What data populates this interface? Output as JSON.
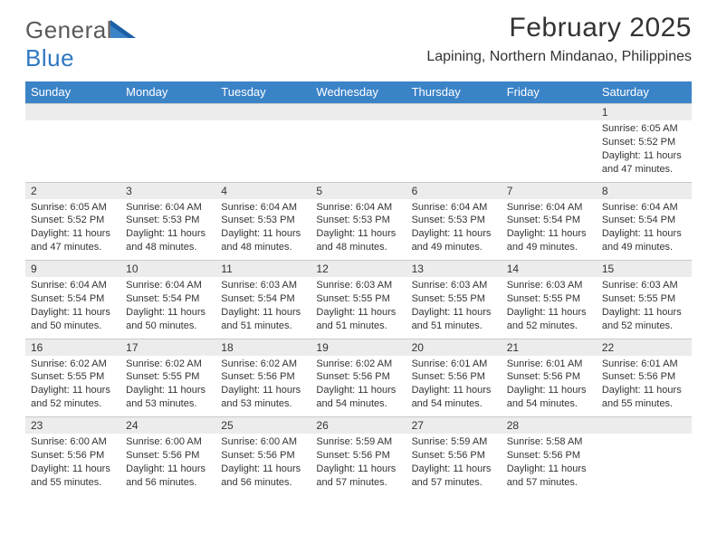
{
  "brand": {
    "name_part1": "General",
    "name_part2": "Blue",
    "text_color": "#5a5a5a",
    "accent_color": "#2f78c2"
  },
  "title": {
    "month_year": "February 2025",
    "location": "Lapining, Northern Mindanao, Philippines",
    "month_fontsize": 30,
    "location_fontsize": 16
  },
  "calendar": {
    "type": "table",
    "header_bg": "#3b83c7",
    "header_fg": "#ffffff",
    "daynum_bg": "#ececec",
    "cell_bg": "#ffffff",
    "border_color": "#c9c9c9",
    "font_size_body": 11,
    "columns": [
      "Sunday",
      "Monday",
      "Tuesday",
      "Wednesday",
      "Thursday",
      "Friday",
      "Saturday"
    ],
    "weeks": [
      [
        null,
        null,
        null,
        null,
        null,
        null,
        {
          "n": "1",
          "sr": "Sunrise: 6:05 AM",
          "ss": "Sunset: 5:52 PM",
          "dl": "Daylight: 11 hours and 47 minutes."
        }
      ],
      [
        {
          "n": "2",
          "sr": "Sunrise: 6:05 AM",
          "ss": "Sunset: 5:52 PM",
          "dl": "Daylight: 11 hours and 47 minutes."
        },
        {
          "n": "3",
          "sr": "Sunrise: 6:04 AM",
          "ss": "Sunset: 5:53 PM",
          "dl": "Daylight: 11 hours and 48 minutes."
        },
        {
          "n": "4",
          "sr": "Sunrise: 6:04 AM",
          "ss": "Sunset: 5:53 PM",
          "dl": "Daylight: 11 hours and 48 minutes."
        },
        {
          "n": "5",
          "sr": "Sunrise: 6:04 AM",
          "ss": "Sunset: 5:53 PM",
          "dl": "Daylight: 11 hours and 48 minutes."
        },
        {
          "n": "6",
          "sr": "Sunrise: 6:04 AM",
          "ss": "Sunset: 5:53 PM",
          "dl": "Daylight: 11 hours and 49 minutes."
        },
        {
          "n": "7",
          "sr": "Sunrise: 6:04 AM",
          "ss": "Sunset: 5:54 PM",
          "dl": "Daylight: 11 hours and 49 minutes."
        },
        {
          "n": "8",
          "sr": "Sunrise: 6:04 AM",
          "ss": "Sunset: 5:54 PM",
          "dl": "Daylight: 11 hours and 49 minutes."
        }
      ],
      [
        {
          "n": "9",
          "sr": "Sunrise: 6:04 AM",
          "ss": "Sunset: 5:54 PM",
          "dl": "Daylight: 11 hours and 50 minutes."
        },
        {
          "n": "10",
          "sr": "Sunrise: 6:04 AM",
          "ss": "Sunset: 5:54 PM",
          "dl": "Daylight: 11 hours and 50 minutes."
        },
        {
          "n": "11",
          "sr": "Sunrise: 6:03 AM",
          "ss": "Sunset: 5:54 PM",
          "dl": "Daylight: 11 hours and 51 minutes."
        },
        {
          "n": "12",
          "sr": "Sunrise: 6:03 AM",
          "ss": "Sunset: 5:55 PM",
          "dl": "Daylight: 11 hours and 51 minutes."
        },
        {
          "n": "13",
          "sr": "Sunrise: 6:03 AM",
          "ss": "Sunset: 5:55 PM",
          "dl": "Daylight: 11 hours and 51 minutes."
        },
        {
          "n": "14",
          "sr": "Sunrise: 6:03 AM",
          "ss": "Sunset: 5:55 PM",
          "dl": "Daylight: 11 hours and 52 minutes."
        },
        {
          "n": "15",
          "sr": "Sunrise: 6:03 AM",
          "ss": "Sunset: 5:55 PM",
          "dl": "Daylight: 11 hours and 52 minutes."
        }
      ],
      [
        {
          "n": "16",
          "sr": "Sunrise: 6:02 AM",
          "ss": "Sunset: 5:55 PM",
          "dl": "Daylight: 11 hours and 52 minutes."
        },
        {
          "n": "17",
          "sr": "Sunrise: 6:02 AM",
          "ss": "Sunset: 5:55 PM",
          "dl": "Daylight: 11 hours and 53 minutes."
        },
        {
          "n": "18",
          "sr": "Sunrise: 6:02 AM",
          "ss": "Sunset: 5:56 PM",
          "dl": "Daylight: 11 hours and 53 minutes."
        },
        {
          "n": "19",
          "sr": "Sunrise: 6:02 AM",
          "ss": "Sunset: 5:56 PM",
          "dl": "Daylight: 11 hours and 54 minutes."
        },
        {
          "n": "20",
          "sr": "Sunrise: 6:01 AM",
          "ss": "Sunset: 5:56 PM",
          "dl": "Daylight: 11 hours and 54 minutes."
        },
        {
          "n": "21",
          "sr": "Sunrise: 6:01 AM",
          "ss": "Sunset: 5:56 PM",
          "dl": "Daylight: 11 hours and 54 minutes."
        },
        {
          "n": "22",
          "sr": "Sunrise: 6:01 AM",
          "ss": "Sunset: 5:56 PM",
          "dl": "Daylight: 11 hours and 55 minutes."
        }
      ],
      [
        {
          "n": "23",
          "sr": "Sunrise: 6:00 AM",
          "ss": "Sunset: 5:56 PM",
          "dl": "Daylight: 11 hours and 55 minutes."
        },
        {
          "n": "24",
          "sr": "Sunrise: 6:00 AM",
          "ss": "Sunset: 5:56 PM",
          "dl": "Daylight: 11 hours and 56 minutes."
        },
        {
          "n": "25",
          "sr": "Sunrise: 6:00 AM",
          "ss": "Sunset: 5:56 PM",
          "dl": "Daylight: 11 hours and 56 minutes."
        },
        {
          "n": "26",
          "sr": "Sunrise: 5:59 AM",
          "ss": "Sunset: 5:56 PM",
          "dl": "Daylight: 11 hours and 57 minutes."
        },
        {
          "n": "27",
          "sr": "Sunrise: 5:59 AM",
          "ss": "Sunset: 5:56 PM",
          "dl": "Daylight: 11 hours and 57 minutes."
        },
        {
          "n": "28",
          "sr": "Sunrise: 5:58 AM",
          "ss": "Sunset: 5:56 PM",
          "dl": "Daylight: 11 hours and 57 minutes."
        },
        null
      ]
    ]
  }
}
